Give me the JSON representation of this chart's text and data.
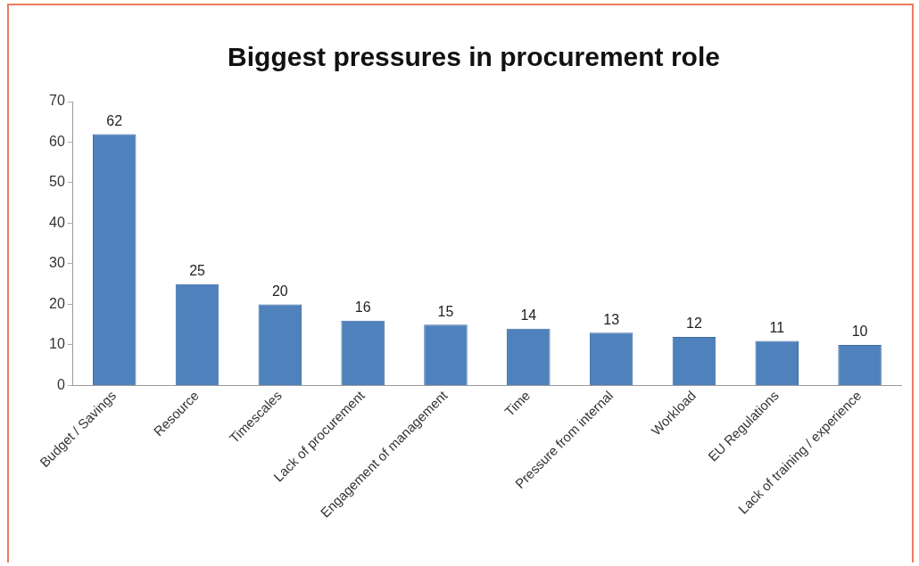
{
  "chart_data": {
    "type": "bar",
    "title": "Biggest pressures in procurement role",
    "categories": [
      "Budget / Savings",
      "Resource",
      "Timescales",
      "Lack of procurement",
      "Engagement of management",
      "Time",
      "Pressure from internal",
      "Workload",
      "EU Regulations",
      "Lack of training / experience"
    ],
    "values": [
      62,
      25,
      20,
      16,
      15,
      14,
      13,
      12,
      11,
      10
    ],
    "color": "#4f81bd",
    "ylim": [
      0,
      70
    ],
    "yticks": [
      0,
      10,
      20,
      30,
      40,
      50,
      60,
      70
    ],
    "grid": false,
    "legend": false,
    "data_labels": true
  }
}
